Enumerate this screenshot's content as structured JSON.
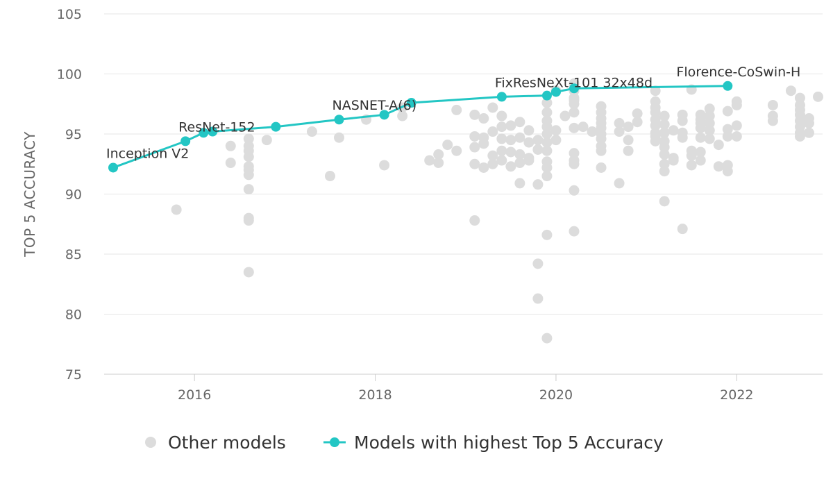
{
  "chart_data": {
    "type": "scatter",
    "xlabel": "",
    "ylabel": "TOP 5 ACCURACY",
    "xlim": [
      2015.0,
      2022.95
    ],
    "ylim": [
      75,
      105
    ],
    "x_ticks": [
      2016,
      2018,
      2020,
      2022
    ],
    "y_ticks": [
      75,
      80,
      85,
      90,
      95,
      100,
      105
    ],
    "grid": "horizontal",
    "legend_position": "bottom-center",
    "colors": {
      "other": "#dcdcdc",
      "best": "#23c6c4",
      "grid": "#e6e6e6",
      "axis": "#cccccc"
    },
    "series": [
      {
        "name": "Other models",
        "type": "scatter",
        "points": [
          [
            15.8,
            88.7
          ],
          [
            16.4,
            94.0
          ],
          [
            16.4,
            92.6
          ],
          [
            16.6,
            94.6
          ],
          [
            16.6,
            94.0
          ],
          [
            16.6,
            93.6
          ],
          [
            16.6,
            93.1
          ],
          [
            16.6,
            92.3
          ],
          [
            16.6,
            92.0
          ],
          [
            16.6,
            91.6
          ],
          [
            16.6,
            90.4
          ],
          [
            16.6,
            88.0
          ],
          [
            16.6,
            87.8
          ],
          [
            16.6,
            83.5
          ],
          [
            16.8,
            94.5
          ],
          [
            17.3,
            95.2
          ],
          [
            17.5,
            91.5
          ],
          [
            17.6,
            94.7
          ],
          [
            17.9,
            96.2
          ],
          [
            18.1,
            92.4
          ],
          [
            18.3,
            96.5
          ],
          [
            18.3,
            97.2
          ],
          [
            18.6,
            92.8
          ],
          [
            18.7,
            93.3
          ],
          [
            18.7,
            92.6
          ],
          [
            18.8,
            94.1
          ],
          [
            18.9,
            97.0
          ],
          [
            18.9,
            93.6
          ],
          [
            19.1,
            96.6
          ],
          [
            19.1,
            94.8
          ],
          [
            19.1,
            93.9
          ],
          [
            19.1,
            92.5
          ],
          [
            19.1,
            87.8
          ],
          [
            19.2,
            96.3
          ],
          [
            19.2,
            94.7
          ],
          [
            19.2,
            94.2
          ],
          [
            19.2,
            92.2
          ],
          [
            19.3,
            97.2
          ],
          [
            19.3,
            95.2
          ],
          [
            19.3,
            93.2
          ],
          [
            19.3,
            92.5
          ],
          [
            19.4,
            96.5
          ],
          [
            19.4,
            95.6
          ],
          [
            19.4,
            94.6
          ],
          [
            19.4,
            93.6
          ],
          [
            19.4,
            92.8
          ],
          [
            19.5,
            94.5
          ],
          [
            19.5,
            93.5
          ],
          [
            19.5,
            92.3
          ],
          [
            19.5,
            95.7
          ],
          [
            19.6,
            96.0
          ],
          [
            19.6,
            94.7
          ],
          [
            19.6,
            93.3
          ],
          [
            19.6,
            92.6
          ],
          [
            19.6,
            90.9
          ],
          [
            19.7,
            95.3
          ],
          [
            19.7,
            94.3
          ],
          [
            19.7,
            93.0
          ],
          [
            19.7,
            92.8
          ],
          [
            19.8,
            94.5
          ],
          [
            19.8,
            93.7
          ],
          [
            19.8,
            84.2
          ],
          [
            19.8,
            81.3
          ],
          [
            19.8,
            90.8
          ],
          [
            19.9,
            97.6
          ],
          [
            19.9,
            96.8
          ],
          [
            19.9,
            96.1
          ],
          [
            19.9,
            95.6
          ],
          [
            19.9,
            95.0
          ],
          [
            19.9,
            94.3
          ],
          [
            19.9,
            93.6
          ],
          [
            19.9,
            92.7
          ],
          [
            19.9,
            92.2
          ],
          [
            19.9,
            91.5
          ],
          [
            19.9,
            86.6
          ],
          [
            19.9,
            78.0
          ],
          [
            20.0,
            95.3
          ],
          [
            20.0,
            94.5
          ],
          [
            20.0,
            98.6
          ],
          [
            20.1,
            96.5
          ],
          [
            20.2,
            97.8
          ],
          [
            20.2,
            99.2
          ],
          [
            20.2,
            98.6
          ],
          [
            20.2,
            98.0
          ],
          [
            20.2,
            97.5
          ],
          [
            20.2,
            96.8
          ],
          [
            20.2,
            95.5
          ],
          [
            20.2,
            93.4
          ],
          [
            20.2,
            92.8
          ],
          [
            20.2,
            92.5
          ],
          [
            20.2,
            90.3
          ],
          [
            20.2,
            86.9
          ],
          [
            20.3,
            95.6
          ],
          [
            20.4,
            95.2
          ],
          [
            20.5,
            97.3
          ],
          [
            20.5,
            96.8
          ],
          [
            20.5,
            96.3
          ],
          [
            20.5,
            95.9
          ],
          [
            20.5,
            95.5
          ],
          [
            20.5,
            95.0
          ],
          [
            20.5,
            94.6
          ],
          [
            20.5,
            94.0
          ],
          [
            20.5,
            93.6
          ],
          [
            20.5,
            92.2
          ],
          [
            20.7,
            95.9
          ],
          [
            20.7,
            95.2
          ],
          [
            20.7,
            90.9
          ],
          [
            20.8,
            95.6
          ],
          [
            20.8,
            94.5
          ],
          [
            20.8,
            93.6
          ],
          [
            20.9,
            96.7
          ],
          [
            20.9,
            96.0
          ],
          [
            21.1,
            98.6
          ],
          [
            21.1,
            97.7
          ],
          [
            21.1,
            97.2
          ],
          [
            21.1,
            96.8
          ],
          [
            21.1,
            96.2
          ],
          [
            21.1,
            95.7
          ],
          [
            21.1,
            95.1
          ],
          [
            21.1,
            94.8
          ],
          [
            21.1,
            94.4
          ],
          [
            21.2,
            96.5
          ],
          [
            21.2,
            95.8
          ],
          [
            21.2,
            95.1
          ],
          [
            21.2,
            94.4
          ],
          [
            21.2,
            93.9
          ],
          [
            21.2,
            93.3
          ],
          [
            21.2,
            92.5
          ],
          [
            21.2,
            91.9
          ],
          [
            21.2,
            89.4
          ],
          [
            21.3,
            95.3
          ],
          [
            21.3,
            93.0
          ],
          [
            21.3,
            92.8
          ],
          [
            21.4,
            96.6
          ],
          [
            21.4,
            96.1
          ],
          [
            21.4,
            95.1
          ],
          [
            21.4,
            94.7
          ],
          [
            21.4,
            87.1
          ],
          [
            21.5,
            93.6
          ],
          [
            21.5,
            93.2
          ],
          [
            21.5,
            92.4
          ],
          [
            21.5,
            98.7
          ],
          [
            21.6,
            96.6
          ],
          [
            21.6,
            96.2
          ],
          [
            21.6,
            95.9
          ],
          [
            21.6,
            95.5
          ],
          [
            21.6,
            94.7
          ],
          [
            21.6,
            93.5
          ],
          [
            21.6,
            92.8
          ],
          [
            21.7,
            97.1
          ],
          [
            21.7,
            96.5
          ],
          [
            21.7,
            95.9
          ],
          [
            21.7,
            95.3
          ],
          [
            21.7,
            94.6
          ],
          [
            21.8,
            94.1
          ],
          [
            21.8,
            92.3
          ],
          [
            21.9,
            96.9
          ],
          [
            21.9,
            92.4
          ],
          [
            21.9,
            91.9
          ],
          [
            21.9,
            95.4
          ],
          [
            21.9,
            94.8
          ],
          [
            22.0,
            95.7
          ],
          [
            22.0,
            94.8
          ],
          [
            22.0,
            97.7
          ],
          [
            22.0,
            97.4
          ],
          [
            22.4,
            97.4
          ],
          [
            22.4,
            96.5
          ],
          [
            22.4,
            96.1
          ],
          [
            22.6,
            98.6
          ],
          [
            22.7,
            98.0
          ],
          [
            22.7,
            97.4
          ],
          [
            22.7,
            97.0
          ],
          [
            22.7,
            96.6
          ],
          [
            22.7,
            96.1
          ],
          [
            22.7,
            95.6
          ],
          [
            22.7,
            95.1
          ],
          [
            22.7,
            94.8
          ],
          [
            22.8,
            96.3
          ],
          [
            22.8,
            95.9
          ],
          [
            22.8,
            95.1
          ],
          [
            22.9,
            98.1
          ]
        ]
      },
      {
        "name": "Models with highest Top 5 Accuracy",
        "type": "line",
        "points": [
          [
            15.1,
            92.2
          ],
          [
            15.9,
            94.4
          ],
          [
            16.1,
            95.1
          ],
          [
            16.2,
            95.2
          ],
          [
            16.9,
            95.6
          ],
          [
            17.6,
            96.2
          ],
          [
            18.1,
            96.6
          ],
          [
            18.4,
            97.6
          ],
          [
            19.4,
            98.1
          ],
          [
            19.9,
            98.2
          ],
          [
            20.0,
            98.5
          ],
          [
            20.2,
            98.8
          ],
          [
            21.9,
            99.0
          ]
        ],
        "labels": [
          {
            "name": "Inception V2",
            "x": 15.1,
            "y": 92.2
          },
          {
            "name": "ResNet-152",
            "x": 15.9,
            "y": 94.4
          },
          {
            "name": "NASNET-A(6)",
            "x": 17.6,
            "y": 96.2
          },
          {
            "name": "FixResNeXt-101 32x48d",
            "x": 19.4,
            "y": 98.1
          },
          {
            "name": "Florence-CoSwin-H",
            "x": 21.9,
            "y": 99.0
          }
        ]
      }
    ]
  }
}
